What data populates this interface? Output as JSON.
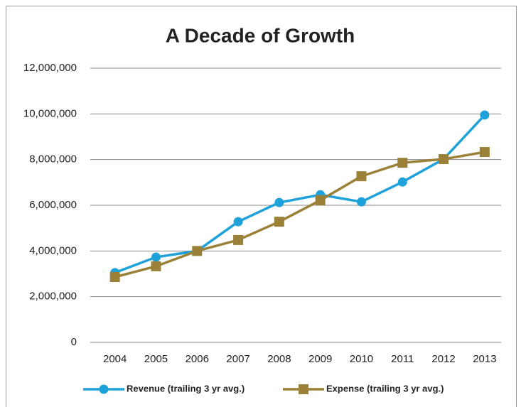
{
  "chart_data": {
    "type": "line",
    "title": "A Decade of Growth",
    "categories": [
      "2004",
      "2005",
      "2006",
      "2007",
      "2008",
      "2009",
      "2010",
      "2011",
      "2012",
      "2013"
    ],
    "series": [
      {
        "name": "Revenue (trailing 3 yr avg.)",
        "color": "#1ea2d9",
        "marker": "circle",
        "values": [
          3050000,
          3730000,
          4000000,
          5280000,
          6120000,
          6460000,
          6150000,
          7020000,
          8020000,
          9950000
        ]
      },
      {
        "name": "Expense (trailing 3 yr avg.)",
        "color": "#9a8137",
        "marker": "square",
        "values": [
          2860000,
          3330000,
          4000000,
          4480000,
          5280000,
          6220000,
          7270000,
          7860000,
          8020000,
          8330000
        ]
      }
    ],
    "ylim": [
      0,
      12000000
    ],
    "yticks": [
      0,
      {
        "value": 2000000,
        "label": "2,000,000"
      },
      {
        "value": 4000000,
        "label": "4,000,000"
      },
      {
        "value": 6000000,
        "label": "6,000,000"
      },
      {
        "value": 8000000,
        "label": "8,000,000"
      },
      {
        "value": 10000000,
        "label": "10,000,000"
      },
      {
        "value": 12000000,
        "label": "12,000,000"
      }
    ],
    "grid": true,
    "legend": "bottom"
  }
}
